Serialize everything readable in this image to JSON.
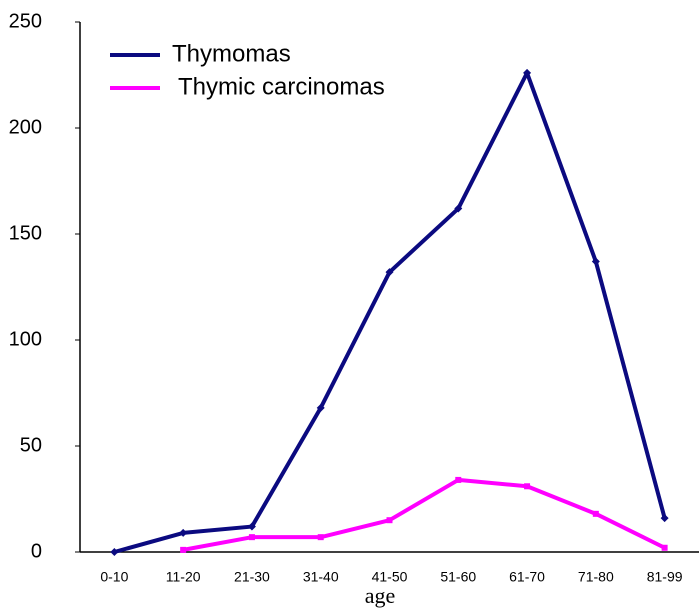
{
  "chart_data": {
    "type": "line",
    "x_label": "age",
    "categories": [
      "0-10",
      "11-20",
      "21-30",
      "31-40",
      "41-50",
      "51-60",
      "61-70",
      "71-80",
      "81-99"
    ],
    "series": [
      {
        "name": "Thymomas",
        "color": "#0b0a80",
        "values": [
          0,
          9,
          12,
          68,
          132,
          162,
          226,
          137,
          16
        ]
      },
      {
        "name": "Thymic carcinomas",
        "color": "#ff00ff",
        "values": [
          null,
          1,
          7,
          7,
          15,
          34,
          31,
          18,
          2
        ]
      }
    ],
    "ylim": [
      0,
      250
    ],
    "yticks": [
      0,
      50,
      100,
      150,
      200,
      250
    ],
    "grid": false,
    "legend": "upper left"
  }
}
